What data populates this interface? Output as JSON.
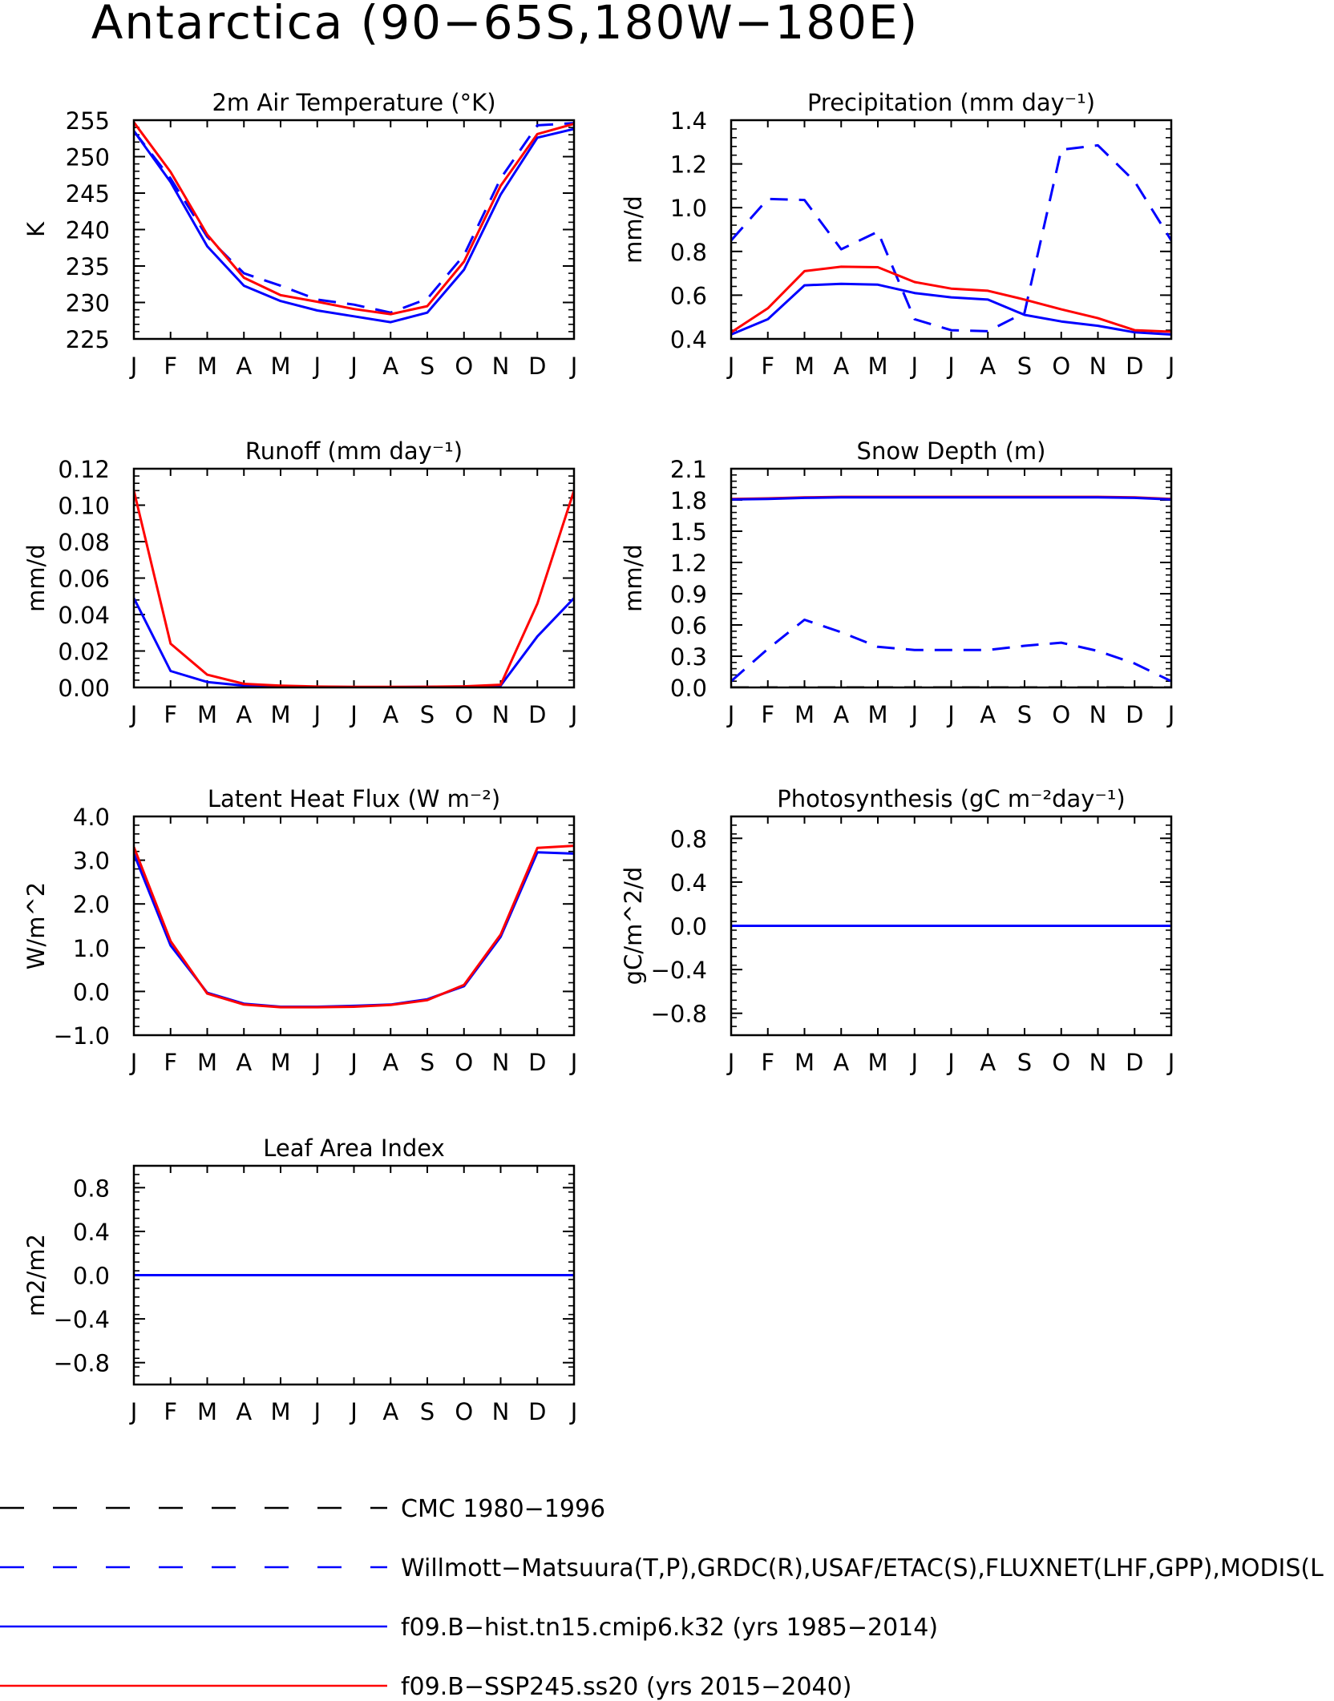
{
  "figure_title": "Antarctica (90−65S,180W−180E)",
  "months": [
    "J",
    "F",
    "M",
    "A",
    "M",
    "J",
    "J",
    "A",
    "S",
    "O",
    "N",
    "D",
    "J"
  ],
  "colors": {
    "obs": "#0000ff",
    "hist": "#0000ff",
    "ssp": "#ff0000",
    "cmc": "#000000"
  },
  "legend": [
    {
      "key": "cmc",
      "label": "CMC 1980−1996"
    },
    {
      "key": "obs",
      "label": "Willmott−Matsuura(T,P),GRDC(R),USAF/ETAC(S),FLUXNET(LHF,GPP),MODIS(L"
    },
    {
      "key": "hist",
      "label": "f09.B−hist.tn15.cmip6.k32 (yrs 1985−2014)"
    },
    {
      "key": "ssp",
      "label": "f09.B−SSP245.ss20 (yrs 2015−2040)"
    }
  ],
  "chart_data": [
    {
      "type": "line",
      "title": "2m Air Temperature (°K)",
      "ylabel": "K",
      "ylim": [
        225,
        255
      ],
      "yticks": [
        "225",
        "230",
        "235",
        "240",
        "245",
        "250",
        "255"
      ],
      "ytick_values": [
        225,
        230,
        235,
        240,
        245,
        250,
        255
      ],
      "x": [
        "J",
        "F",
        "M",
        "A",
        "M",
        "J",
        "J",
        "A",
        "S",
        "O",
        "N",
        "D",
        "J"
      ],
      "series": [
        {
          "key": "obs",
          "values": [
            253.5,
            247,
            239,
            234,
            232.3,
            230.4,
            229.7,
            228.6,
            230.5,
            236.5,
            247,
            254.3,
            254.6
          ]
        },
        {
          "key": "hist",
          "values": [
            253.5,
            246.5,
            237.7,
            232.3,
            230.2,
            228.9,
            228.1,
            227.3,
            228.6,
            234.5,
            244.8,
            252.6,
            253.8
          ]
        },
        {
          "key": "ssp",
          "values": [
            254.7,
            247.9,
            239.3,
            233.4,
            231,
            230.1,
            229.1,
            228.4,
            229.5,
            235.6,
            246,
            253.1,
            254.5
          ]
        }
      ]
    },
    {
      "type": "line",
      "title": "Precipitation (mm day⁻¹)",
      "ylabel": "mm/d",
      "ylim": [
        0.4,
        1.4
      ],
      "yticks": [
        "0.4",
        "0.6",
        "0.8",
        "1.0",
        "1.2",
        "1.4"
      ],
      "ytick_values": [
        0.4,
        0.6,
        0.8,
        1.0,
        1.2,
        1.4
      ],
      "x": [
        "J",
        "F",
        "M",
        "A",
        "M",
        "J",
        "J",
        "A",
        "S",
        "O",
        "N",
        "D",
        "J"
      ],
      "series": [
        {
          "key": "obs",
          "values": [
            0.85,
            1.04,
            1.035,
            0.81,
            0.89,
            0.49,
            0.44,
            0.435,
            0.52,
            1.265,
            1.285,
            1.12,
            0.85
          ]
        },
        {
          "key": "hist",
          "values": [
            0.42,
            0.49,
            0.645,
            0.652,
            0.648,
            0.61,
            0.59,
            0.58,
            0.51,
            0.48,
            0.46,
            0.43,
            0.42
          ]
        },
        {
          "key": "ssp",
          "values": [
            0.43,
            0.54,
            0.71,
            0.73,
            0.728,
            0.66,
            0.63,
            0.62,
            0.58,
            0.535,
            0.495,
            0.44,
            0.433
          ]
        }
      ]
    },
    {
      "type": "line",
      "title": "Runoff (mm day⁻¹)",
      "ylabel": "mm/d",
      "ylim": [
        0,
        0.12
      ],
      "yticks": [
        "0.00",
        "0.02",
        "0.04",
        "0.06",
        "0.08",
        "0.10",
        "0.12"
      ],
      "ytick_values": [
        0,
        0.02,
        0.04,
        0.06,
        0.08,
        0.1,
        0.12
      ],
      "x": [
        "J",
        "F",
        "M",
        "A",
        "M",
        "J",
        "J",
        "A",
        "S",
        "O",
        "N",
        "D",
        "J"
      ],
      "series": [
        {
          "key": "hist",
          "values": [
            0.049,
            0.009,
            0.003,
            0.001,
            0.0005,
            0.0003,
            0.0002,
            0.0002,
            0.0003,
            0.0005,
            0.001,
            0.028,
            0.049
          ]
        },
        {
          "key": "ssp",
          "values": [
            0.108,
            0.024,
            0.007,
            0.002,
            0.001,
            0.0005,
            0.0003,
            0.0003,
            0.0004,
            0.0006,
            0.0015,
            0.046,
            0.108
          ]
        }
      ]
    },
    {
      "type": "line",
      "title": "Snow Depth (m)",
      "ylabel": "mm/d",
      "ylim": [
        0,
        2.1
      ],
      "yticks": [
        "0.0",
        "0.3",
        "0.6",
        "0.9",
        "1.2",
        "1.5",
        "1.8",
        "2.1"
      ],
      "ytick_values": [
        0,
        0.3,
        0.6,
        0.9,
        1.2,
        1.5,
        1.8,
        2.1
      ],
      "x": [
        "J",
        "F",
        "M",
        "A",
        "M",
        "J",
        "J",
        "A",
        "S",
        "O",
        "N",
        "D",
        "J"
      ],
      "series": [
        {
          "key": "obs",
          "values": [
            0.06,
            0.37,
            0.65,
            0.53,
            0.39,
            0.36,
            0.36,
            0.36,
            0.4,
            0.43,
            0.35,
            0.23,
            0.06
          ]
        },
        {
          "key": "cmc",
          "values": [
            0,
            0,
            0,
            0,
            0,
            0,
            0,
            0,
            0,
            0,
            0,
            0,
            0
          ]
        },
        {
          "key": "ssp",
          "values": [
            1.81,
            1.815,
            1.825,
            1.83,
            1.83,
            1.83,
            1.83,
            1.83,
            1.83,
            1.83,
            1.83,
            1.825,
            1.81
          ]
        },
        {
          "key": "hist",
          "values": [
            1.805,
            1.81,
            1.82,
            1.825,
            1.825,
            1.825,
            1.825,
            1.825,
            1.825,
            1.825,
            1.825,
            1.82,
            1.805
          ]
        }
      ]
    },
    {
      "type": "line",
      "title": "Latent Heat Flux (W m⁻²)",
      "ylabel": "W/m^2",
      "ylim": [
        -1,
        4
      ],
      "yticks": [
        "−1.0",
        "0.0",
        "1.0",
        "2.0",
        "3.0",
        "4.0"
      ],
      "ytick_values": [
        -1,
        0,
        1,
        2,
        3,
        4
      ],
      "x": [
        "J",
        "F",
        "M",
        "A",
        "M",
        "J",
        "J",
        "A",
        "S",
        "O",
        "N",
        "D",
        "J"
      ],
      "series": [
        {
          "key": "hist",
          "values": [
            3.15,
            1.05,
            -0.03,
            -0.28,
            -0.35,
            -0.35,
            -0.33,
            -0.3,
            -0.18,
            0.12,
            1.25,
            3.18,
            3.15
          ]
        },
        {
          "key": "ssp",
          "values": [
            3.3,
            1.15,
            -0.05,
            -0.3,
            -0.36,
            -0.36,
            -0.35,
            -0.31,
            -0.2,
            0.15,
            1.3,
            3.28,
            3.33
          ]
        }
      ]
    },
    {
      "type": "line",
      "title": "Photosynthesis (gC m⁻²day⁻¹)",
      "ylabel": "gC/m^2/d",
      "ylim": [
        -1,
        1
      ],
      "yticks": [
        "−0.8",
        "−0.4",
        "0.0",
        "0.4",
        "0.8"
      ],
      "ytick_values": [
        -0.8,
        -0.4,
        0,
        0.4,
        0.8
      ],
      "x": [
        "J",
        "F",
        "M",
        "A",
        "M",
        "J",
        "J",
        "A",
        "S",
        "O",
        "N",
        "D",
        "J"
      ],
      "series": [
        {
          "key": "ssp",
          "values": [
            0,
            0,
            0,
            0,
            0,
            0,
            0,
            0,
            0,
            0,
            0,
            0,
            0
          ]
        },
        {
          "key": "hist",
          "values": [
            0,
            0,
            0,
            0,
            0,
            0,
            0,
            0,
            0,
            0,
            0,
            0,
            0
          ]
        }
      ]
    },
    {
      "type": "line",
      "title": "Leaf Area Index",
      "ylabel": "m2/m2",
      "ylim": [
        -1,
        1
      ],
      "yticks": [
        "−0.8",
        "−0.4",
        "0.0",
        "0.4",
        "0.8"
      ],
      "ytick_values": [
        -0.8,
        -0.4,
        0,
        0.4,
        0.8
      ],
      "x": [
        "J",
        "F",
        "M",
        "A",
        "M",
        "J",
        "J",
        "A",
        "S",
        "O",
        "N",
        "D",
        "J"
      ],
      "series": [
        {
          "key": "ssp",
          "values": [
            0,
            0,
            0,
            0,
            0,
            0,
            0,
            0,
            0,
            0,
            0,
            0,
            0
          ]
        },
        {
          "key": "hist",
          "values": [
            0,
            0,
            0,
            0,
            0,
            0,
            0,
            0,
            0,
            0,
            0,
            0,
            0
          ]
        }
      ]
    }
  ]
}
